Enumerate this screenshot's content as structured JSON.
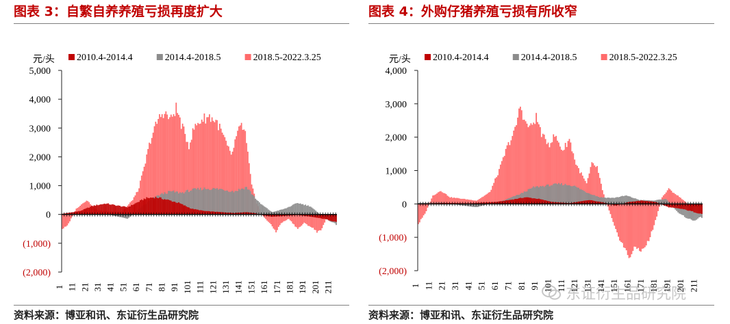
{
  "panels": [
    {
      "title": "图表 3：自繁自养养殖亏损再度扩大",
      "source": "资料来源：博亚和讯、东证衍生品研究院",
      "chart_data": {
        "type": "bar",
        "unit_label": "元/头",
        "ylim": [
          -2000,
          5000
        ],
        "yticks": [
          -2000,
          -1000,
          0,
          1000,
          2000,
          3000,
          4000,
          5000
        ],
        "ytick_labels": [
          "(2,000)",
          "(1,000)",
          "0",
          "1,000",
          "2,000",
          "3,000",
          "4,000",
          "5,000"
        ],
        "x_start": 1,
        "x_end": 215,
        "xtick_labels": [
          "1",
          "11",
          "21",
          "31",
          "41",
          "51",
          "61",
          "71",
          "81",
          "91",
          "101",
          "111",
          "121",
          "131",
          "141",
          "151",
          "161",
          "171",
          "181",
          "191",
          "201",
          "211"
        ],
        "legend_position": "top",
        "series": [
          {
            "name": "2010.4-2014.4",
            "color": "#c00000",
            "profile": [
              [
                1,
                20
              ],
              [
                15,
                120
              ],
              [
                25,
                300
              ],
              [
                35,
                380
              ],
              [
                45,
                300
              ],
              [
                52,
                250
              ],
              [
                58,
                380
              ],
              [
                66,
                560
              ],
              [
                74,
                600
              ],
              [
                82,
                520
              ],
              [
                92,
                400
              ],
              [
                102,
                200
              ],
              [
                112,
                120
              ],
              [
                125,
                80
              ],
              [
                135,
                50
              ],
              [
                145,
                80
              ],
              [
                152,
                40
              ],
              [
                158,
                -30
              ],
              [
                165,
                -80
              ],
              [
                175,
                -50
              ],
              [
                185,
                -20
              ],
              [
                195,
                -80
              ],
              [
                205,
                -150
              ],
              [
                215,
                -260
              ]
            ]
          },
          {
            "name": "2014.4-2018.5",
            "color": "#8c8c8c",
            "profile": [
              [
                1,
                30
              ],
              [
                20,
                60
              ],
              [
                35,
                20
              ],
              [
                45,
                -80
              ],
              [
                52,
                -150
              ],
              [
                60,
                150
              ],
              [
                70,
                500
              ],
              [
                78,
                700
              ],
              [
                86,
                800
              ],
              [
                94,
                750
              ],
              [
                102,
                850
              ],
              [
                112,
                900
              ],
              [
                125,
                880
              ],
              [
                135,
                800
              ],
              [
                145,
                950
              ],
              [
                155,
                400
              ],
              [
                165,
                80
              ],
              [
                175,
                200
              ],
              [
                185,
                400
              ],
              [
                195,
                280
              ],
              [
                205,
                -100
              ],
              [
                215,
                -350
              ]
            ]
          },
          {
            "name": "2018.5-2022.3.25",
            "color": "#ff6b6b",
            "profile": [
              [
                1,
                -500
              ],
              [
                5,
                -400
              ],
              [
                12,
                200
              ],
              [
                20,
                500
              ],
              [
                28,
                150
              ],
              [
                38,
                100
              ],
              [
                48,
                100
              ],
              [
                55,
                450
              ],
              [
                60,
                800
              ],
              [
                65,
                1600
              ],
              [
                70,
                2600
              ],
              [
                76,
                3300
              ],
              [
                80,
                3550
              ],
              [
                86,
                3300
              ],
              [
                90,
                3700
              ],
              [
                95,
                3000
              ],
              [
                100,
                2400
              ],
              [
                104,
                3000
              ],
              [
                110,
                3300
              ],
              [
                116,
                3400
              ],
              [
                122,
                3200
              ],
              [
                128,
                2600
              ],
              [
                133,
                2000
              ],
              [
                137,
                2700
              ],
              [
                141,
                3100
              ],
              [
                144,
                2800
              ],
              [
                149,
                1000
              ],
              [
                153,
                400
              ],
              [
                157,
                -20
              ],
              [
                163,
                -300
              ],
              [
                168,
                -600
              ],
              [
                172,
                -300
              ],
              [
                178,
                -150
              ],
              [
                185,
                -500
              ],
              [
                190,
                -300
              ],
              [
                196,
                -450
              ],
              [
                200,
                -600
              ],
              [
                204,
                -500
              ],
              [
                207,
                -150
              ]
            ]
          }
        ]
      }
    },
    {
      "title": "图表 4：外购仔猪养殖亏损有所收窄",
      "source": "资料来源：博亚和讯、东证衍生品研究院",
      "chart_data": {
        "type": "bar",
        "unit_label": "元/头",
        "ylim": [
          -2000,
          4000
        ],
        "yticks": [
          -2000,
          -1000,
          0,
          1000,
          2000,
          3000,
          4000
        ],
        "ytick_labels": [
          "(2,000)",
          "(1,000)",
          "0",
          "1,000",
          "2,000",
          "3,000",
          "4,000"
        ],
        "x_start": 1,
        "x_end": 215,
        "xtick_labels": [
          "1",
          "11",
          "21",
          "31",
          "41",
          "51",
          "61",
          "71",
          "81",
          "91",
          "101",
          "111",
          "121",
          "131",
          "141",
          "151",
          "161",
          "171",
          "181",
          "191",
          "201",
          "211"
        ],
        "legend_position": "top",
        "series": [
          {
            "name": "2010.4-2014.4",
            "color": "#c00000",
            "profile": [
              [
                1,
                10
              ],
              [
                20,
                30
              ],
              [
                40,
                20
              ],
              [
                60,
                60
              ],
              [
                70,
                120
              ],
              [
                82,
                200
              ],
              [
                92,
                150
              ],
              [
                102,
                60
              ],
              [
                115,
                20
              ],
              [
                130,
                120
              ],
              [
                140,
                50
              ],
              [
                150,
                -50
              ],
              [
                160,
                60
              ],
              [
                170,
                100
              ],
              [
                180,
                60
              ],
              [
                190,
                -100
              ],
              [
                200,
                -150
              ],
              [
                210,
                -250
              ],
              [
                215,
                -300
              ]
            ]
          },
          {
            "name": "2014.4-2018.5",
            "color": "#8c8c8c",
            "profile": [
              [
                1,
                30
              ],
              [
                20,
                40
              ],
              [
                35,
                -50
              ],
              [
                45,
                -100
              ],
              [
                55,
                10
              ],
              [
                65,
                100
              ],
              [
                78,
                300
              ],
              [
                88,
                500
              ],
              [
                98,
                550
              ],
              [
                108,
                600
              ],
              [
                118,
                550
              ],
              [
                128,
                350
              ],
              [
                138,
                200
              ],
              [
                148,
                180
              ],
              [
                158,
                250
              ],
              [
                168,
                120
              ],
              [
                178,
                100
              ],
              [
                188,
                150
              ],
              [
                198,
                -300
              ],
              [
                208,
                -500
              ],
              [
                215,
                -400
              ]
            ]
          },
          {
            "name": "2018.5-2022.3.25",
            "color": "#ff6b6b",
            "profile": [
              [
                1,
                -600
              ],
              [
                6,
                -300
              ],
              [
                12,
                250
              ],
              [
                18,
                400
              ],
              [
                25,
                200
              ],
              [
                35,
                150
              ],
              [
                45,
                100
              ],
              [
                55,
                350
              ],
              [
                62,
                1000
              ],
              [
                68,
                1700
              ],
              [
                74,
                2200
              ],
              [
                78,
                2950
              ],
              [
                82,
                2400
              ],
              [
                86,
                2300
              ],
              [
                90,
                2600
              ],
              [
                95,
                2000
              ],
              [
                100,
                1800
              ],
              [
                104,
                2050
              ],
              [
                110,
                1600
              ],
              [
                115,
                1950
              ],
              [
                120,
                1200
              ],
              [
                124,
                900
              ],
              [
                128,
                600
              ],
              [
                132,
                1200
              ],
              [
                136,
                1100
              ],
              [
                140,
                400
              ],
              [
                145,
                -200
              ],
              [
                150,
                -800
              ],
              [
                155,
                -1200
              ],
              [
                160,
                -1600
              ],
              [
                165,
                -1300
              ],
              [
                170,
                -1400
              ],
              [
                175,
                -1100
              ],
              [
                180,
                -500
              ],
              [
                185,
                200
              ],
              [
                190,
                450
              ],
              [
                195,
                300
              ],
              [
                200,
                150
              ],
              [
                206,
                -50
              ],
              [
                212,
                -100
              ]
            ]
          }
        ]
      }
    }
  ],
  "watermark": {
    "icon": "wechat-icon",
    "text": "东证衍生品研究院"
  }
}
